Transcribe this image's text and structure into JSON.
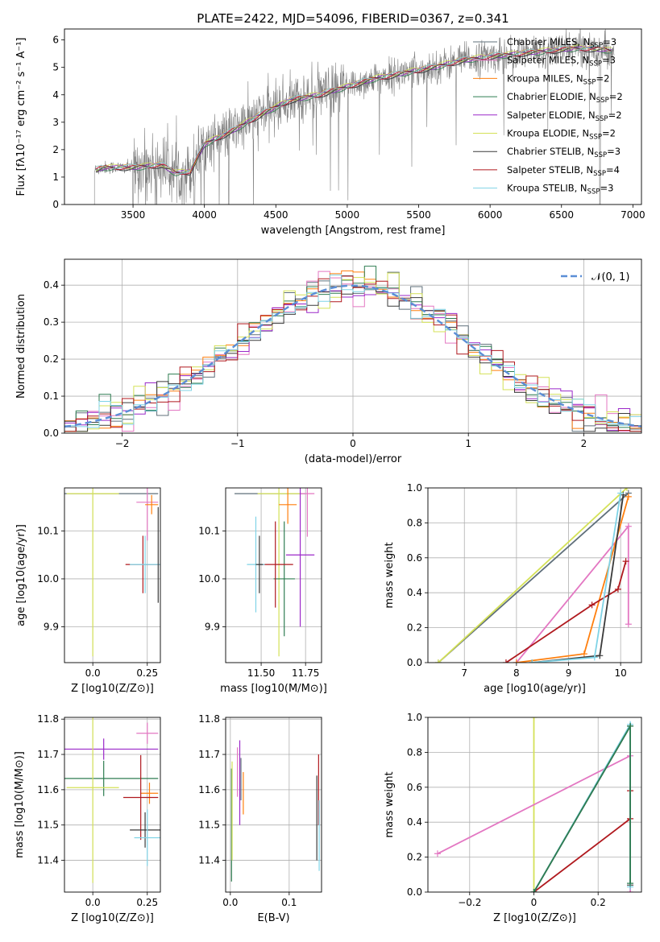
{
  "colors": {
    "Chabrier MILES": "#5f6f7a",
    "Salpeter MILES": "#e377c2",
    "Kroupa MILES": "#ff7f0e",
    "Chabrier ELODIE": "#2f7d52",
    "Salpeter ELODIE": "#9b28c9",
    "Kroupa ELODIE": "#d4e157",
    "Chabrier STELIB": "#3a3a3a",
    "Salpeter STELIB": "#b0191e",
    "Kroupa STELIB": "#7fd3e6",
    "spectrum": "#808080",
    "normal": "#5b8ed6"
  },
  "legend_models": [
    {
      "name": "Chabrier MILES",
      "label": "Chabrier MILES, N",
      "sub": "SSP",
      "n": "=3"
    },
    {
      "name": "Salpeter MILES",
      "label": "Salpeter MILES, N",
      "sub": "SSP",
      "n": "=3"
    },
    {
      "name": "Kroupa MILES",
      "label": "Kroupa MILES, N",
      "sub": "SSP",
      "n": "=2"
    },
    {
      "name": "Chabrier ELODIE",
      "label": "Chabrier ELODIE, N",
      "sub": "SSP",
      "n": "=2"
    },
    {
      "name": "Salpeter ELODIE",
      "label": "Salpeter ELODIE, N",
      "sub": "SSP",
      "n": "=2"
    },
    {
      "name": "Kroupa ELODIE",
      "label": "Kroupa ELODIE, N",
      "sub": "SSP",
      "n": "=2"
    },
    {
      "name": "Chabrier STELIB",
      "label": "Chabrier STELIB, N",
      "sub": "SSP",
      "n": "=3"
    },
    {
      "name": "Salpeter STELIB",
      "label": "Salpeter STELIB, N",
      "sub": "SSP",
      "n": "=4"
    },
    {
      "name": "Kroupa STELIB",
      "label": "Kroupa STELIB, N",
      "sub": "SSP",
      "n": "=3"
    }
  ],
  "chart_data": [
    {
      "id": "spectrum",
      "type": "line",
      "title": "PLATE=2422, MJD=54096, FIBERID=0367, z=0.341",
      "xlabel": "wavelength [Angstrom, rest frame]",
      "ylabel": "Flux [fλ10⁻¹⁷ erg cm⁻² s⁻¹ A⁻¹]",
      "xlim": [
        3020,
        7060
      ],
      "ylim": [
        0,
        6.4
      ],
      "xticks": [
        3500,
        4000,
        4500,
        5000,
        5500,
        6000,
        6500,
        7000
      ],
      "yticks": [
        0,
        1,
        2,
        3,
        4,
        5,
        6
      ],
      "continuum": {
        "x": [
          3230,
          3300,
          3500,
          3700,
          3800,
          3900,
          4000,
          4200,
          4400,
          4600,
          4800,
          5000,
          5200,
          5400,
          5600,
          5800,
          6000,
          6200,
          6400,
          6600,
          6800,
          6850
        ],
        "y": [
          1.25,
          1.35,
          1.35,
          1.45,
          1.15,
          1.2,
          2.2,
          2.7,
          3.3,
          3.8,
          4.0,
          4.3,
          4.6,
          4.8,
          5.0,
          5.25,
          5.4,
          5.5,
          5.6,
          5.7,
          5.65,
          5.6
        ]
      },
      "observed_range": [
        3230,
        6870
      ]
    },
    {
      "id": "residuals",
      "type": "histogram",
      "xlabel": "(data-model)/error",
      "ylabel": "Normed distribution",
      "xlim": [
        -2.5,
        2.5
      ],
      "ylim": [
        0,
        0.47
      ],
      "xticks": [
        -2,
        -1,
        0,
        1,
        2
      ],
      "yticks": [
        0.0,
        0.1,
        0.2,
        0.3,
        0.4
      ],
      "legend": "𝒩(0, 1)",
      "bin_width": 0.1,
      "reference_distribution": {
        "mean": 0,
        "sd": 1
      }
    },
    {
      "id": "age-vs-Z",
      "type": "errorbar",
      "xlabel": "Z [log10(Z/Z⊙)]",
      "ylabel": "age  [log10(age/yr)]",
      "xlim": [
        -0.13,
        0.31
      ],
      "ylim": [
        9.825,
        10.19
      ],
      "xticks": [
        0.0,
        0.25
      ],
      "yticks": [
        9.9,
        10.0,
        10.1
      ],
      "points": [
        {
          "model": "Chabrier MILES",
          "x": 0.05,
          "xerr": 0.25,
          "y": 10.178,
          "yerr": 0.0
        },
        {
          "model": "Salpeter MILES",
          "x": 0.25,
          "xerr": 0.05,
          "y": 10.16,
          "yerr": 0.08
        },
        {
          "model": "Kroupa MILES",
          "x": 0.27,
          "xerr": 0.03,
          "y": 10.155,
          "yerr": 0.02
        },
        {
          "model": "Kroupa ELODIE",
          "x": 0.0,
          "xerr": 0.12,
          "y": 10.178,
          "yerr": 0.34
        },
        {
          "model": "Salpeter STELIB",
          "x": 0.23,
          "xerr": 0.08,
          "y": 10.03,
          "yerr": 0.06
        },
        {
          "model": "Kroupa STELIB",
          "x": 0.24,
          "xerr": 0.07,
          "y": 10.03,
          "yerr": 0.06
        },
        {
          "model": "Chabrier STELIB",
          "x": 0.3,
          "xerr": 0.0,
          "y": 10.05,
          "yerr": 0.1
        }
      ]
    },
    {
      "id": "age-vs-mass",
      "type": "errorbar",
      "xlabel": "mass [log10(M/M⊙)]",
      "xlim": [
        11.3,
        11.84
      ],
      "ylim": [
        9.825,
        10.19
      ],
      "xticks": [
        11.5,
        11.75
      ],
      "yticks": [
        9.9,
        10.0,
        10.1
      ],
      "points": [
        {
          "model": "Chabrier MILES",
          "x": 11.55,
          "xerr": 0.2,
          "y": 10.178,
          "yerr": 0.0
        },
        {
          "model": "Kroupa ELODIE",
          "x": 11.6,
          "xerr": 0.12,
          "y": 10.178,
          "yerr": 0.34
        },
        {
          "model": "Salpeter MILES",
          "x": 11.76,
          "xerr": 0.04,
          "y": 10.178,
          "yerr": 0.09
        },
        {
          "model": "Kroupa MILES",
          "x": 11.65,
          "xerr": 0.05,
          "y": 10.155,
          "yerr": 0.04
        },
        {
          "model": "Salpeter ELODIE",
          "x": 11.72,
          "xerr": 0.08,
          "y": 10.05,
          "yerr": 0.15
        },
        {
          "model": "Chabrier ELODIE",
          "x": 11.63,
          "xerr": 0.06,
          "y": 10.0,
          "yerr": 0.12
        },
        {
          "model": "Salpeter STELIB",
          "x": 11.58,
          "xerr": 0.1,
          "y": 10.03,
          "yerr": 0.09
        },
        {
          "model": "Kroupa STELIB",
          "x": 11.47,
          "xerr": 0.05,
          "y": 10.03,
          "yerr": 0.1
        },
        {
          "model": "Chabrier STELIB",
          "x": 11.49,
          "xerr": 0.02,
          "y": 10.03,
          "yerr": 0.06
        }
      ]
    },
    {
      "id": "weight-vs-age",
      "type": "line",
      "xlabel": "age  [log10(age/yr)]",
      "ylabel": "mass weight",
      "xlim": [
        6.3,
        10.4
      ],
      "ylim": [
        0,
        1.0
      ],
      "xticks": [
        7,
        8,
        9,
        10
      ],
      "yticks": [
        0.0,
        0.2,
        0.4,
        0.6,
        0.8,
        1.0
      ],
      "series": [
        {
          "model": "Chabrier MILES",
          "x": [
            6.5,
            10.15
          ],
          "y": [
            0.0,
            0.97
          ]
        },
        {
          "model": "Kroupa ELODIE",
          "x": [
            6.5,
            10.12
          ],
          "y": [
            0.0,
            1.0
          ]
        },
        {
          "model": "Salpeter MILES",
          "x": [
            8.0,
            10.15,
            10.15
          ],
          "y": [
            0.0,
            0.78,
            0.22
          ]
        },
        {
          "model": "Kroupa MILES",
          "x": [
            8.0,
            9.3,
            10.15
          ],
          "y": [
            0.0,
            0.05,
            0.95
          ]
        },
        {
          "model": "Salpeter STELIB",
          "x": [
            7.8,
            9.45,
            9.95,
            10.1
          ],
          "y": [
            0.0,
            0.33,
            0.42,
            0.58
          ]
        },
        {
          "model": "Chabrier STELIB",
          "x": [
            8.3,
            9.6,
            10.05
          ],
          "y": [
            0.0,
            0.04,
            0.96
          ]
        },
        {
          "model": "Kroupa STELIB",
          "x": [
            8.3,
            9.5,
            10.0
          ],
          "y": [
            0.0,
            0.03,
            0.97
          ]
        }
      ]
    },
    {
      "id": "mass-vs-Z",
      "type": "errorbar",
      "xlabel": "Z [log10(Z/Z⊙)]",
      "ylabel": "mass [log10(M/M⊙)]",
      "xlim": [
        -0.13,
        0.31
      ],
      "ylim": [
        11.31,
        11.805
      ],
      "xticks": [
        0.0,
        0.25
      ],
      "yticks": [
        11.4,
        11.5,
        11.6,
        11.7,
        11.8
      ],
      "points": [
        {
          "model": "Salpeter ELODIE",
          "x": 0.05,
          "xerr": 0.25,
          "y": 11.715,
          "yerr": 0.03
        },
        {
          "model": "Salpeter MILES",
          "x": 0.25,
          "xerr": 0.05,
          "y": 11.76,
          "yerr": 0.03
        },
        {
          "model": "Chabrier ELODIE",
          "x": 0.05,
          "xerr": 0.25,
          "y": 11.632,
          "yerr": 0.05
        },
        {
          "model": "Kroupa ELODIE",
          "x": 0.0,
          "xerr": 0.12,
          "y": 11.606,
          "yerr": 0.27
        },
        {
          "model": "Kroupa MILES",
          "x": 0.26,
          "xerr": 0.04,
          "y": 11.59,
          "yerr": 0.03
        },
        {
          "model": "Salpeter STELIB",
          "x": 0.22,
          "xerr": 0.08,
          "y": 11.578,
          "yerr": 0.12
        },
        {
          "model": "Chabrier STELIB",
          "x": 0.24,
          "xerr": 0.07,
          "y": 11.486,
          "yerr": 0.05
        },
        {
          "model": "Kroupa STELIB",
          "x": 0.25,
          "xerr": 0.06,
          "y": 11.464,
          "yerr": 0.08
        }
      ]
    },
    {
      "id": "mass-vs-EBV",
      "type": "errorbar",
      "xlabel": "E(B-V)",
      "xlim": [
        -0.008,
        0.155
      ],
      "ylim": [
        11.31,
        11.805
      ],
      "xticks": [
        0.0,
        0.1
      ],
      "yticks": [
        11.4,
        11.5,
        11.6,
        11.7,
        11.8
      ],
      "points": [
        {
          "model": "Chabrier ELODIE",
          "x": 0.002,
          "xerr": 0.0,
          "y": 11.5,
          "yerr": 0.16
        },
        {
          "model": "Kroupa ELODIE",
          "x": 0.003,
          "xerr": 0.0,
          "y": 11.54,
          "yerr": 0.14
        },
        {
          "model": "Salpeter MILES",
          "x": 0.012,
          "xerr": 0.0,
          "y": 11.65,
          "yerr": 0.07
        },
        {
          "model": "Salpeter ELODIE",
          "x": 0.016,
          "xerr": 0.0,
          "y": 11.62,
          "yerr": 0.12
        },
        {
          "model": "Chabrier MILES",
          "x": 0.018,
          "xerr": 0.0,
          "y": 11.63,
          "yerr": 0.06
        },
        {
          "model": "Kroupa MILES",
          "x": 0.022,
          "xerr": 0.0,
          "y": 11.59,
          "yerr": 0.06
        },
        {
          "model": "Chabrier STELIB",
          "x": 0.147,
          "xerr": 0.0,
          "y": 11.52,
          "yerr": 0.12
        },
        {
          "model": "Salpeter STELIB",
          "x": 0.15,
          "xerr": 0.0,
          "y": 11.6,
          "yerr": 0.1
        },
        {
          "model": "Kroupa STELIB",
          "x": 0.151,
          "xerr": 0.0,
          "y": 11.47,
          "yerr": 0.1
        }
      ]
    },
    {
      "id": "weight-vs-Z",
      "type": "line",
      "xlabel": "Z [log10(Z/Z⊙)]",
      "ylabel": "mass weight",
      "xlim": [
        -0.33,
        0.335
      ],
      "ylim": [
        0,
        1.0
      ],
      "xticks": [
        -0.2,
        0.0,
        0.2
      ],
      "yticks": [
        0.0,
        0.2,
        0.4,
        0.6,
        0.8,
        1.0
      ],
      "series": [
        {
          "model": "Kroupa ELODIE",
          "x": [
            0.0,
            0.0
          ],
          "y": [
            0.0,
            1.0
          ]
        },
        {
          "model": "Salpeter MILES",
          "x": [
            -0.3,
            0.3,
            0.3
          ],
          "y": [
            0.22,
            0.78,
            0.0
          ]
        },
        {
          "model": "Salpeter STELIB",
          "x": [
            0.0,
            0.3,
            0.3
          ],
          "y": [
            0.0,
            0.42,
            0.58
          ]
        },
        {
          "model": "Chabrier STELIB",
          "x": [
            0.0,
            0.3,
            0.3
          ],
          "y": [
            0.0,
            0.95,
            0.04
          ]
        },
        {
          "model": "Kroupa STELIB",
          "x": [
            0.0,
            0.3,
            0.3
          ],
          "y": [
            0.0,
            0.96,
            0.03
          ]
        },
        {
          "model": "Chabrier ELODIE",
          "x": [
            0.0,
            0.3,
            0.3
          ],
          "y": [
            0.0,
            0.95,
            0.05
          ]
        }
      ]
    }
  ]
}
